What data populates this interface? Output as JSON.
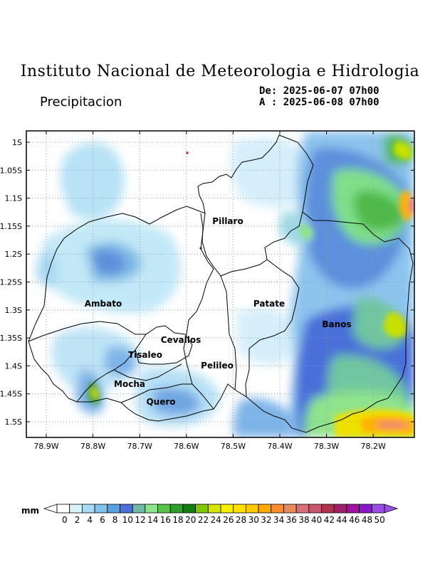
{
  "header": {
    "title": "Instituto Nacional de Meteorologia e Hidrologia",
    "subtitle": "Precipitacion",
    "date_from": "De: 2025-06-07 07h00",
    "date_to": "A : 2025-06-08 07h00"
  },
  "map": {
    "lat_ticks": [
      "1S",
      "1.05S",
      "1.1S",
      "1.15S",
      "1.2S",
      "1.25S",
      "1.3S",
      "1.35S",
      "1.4S",
      "1.45S",
      "1.5S"
    ],
    "lon_ticks": [
      "78.9W",
      "78.8W",
      "78.7W",
      "78.6W",
      "78.5W",
      "78.4W",
      "78.3W",
      "78.2W"
    ],
    "places": [
      {
        "name": "Pillaro"
      },
      {
        "name": "Ambato"
      },
      {
        "name": "Patate"
      },
      {
        "name": "Banos"
      },
      {
        "name": "Cevallos"
      },
      {
        "name": "Tisaleo"
      },
      {
        "name": "Pelileo"
      },
      {
        "name": "Mocha"
      },
      {
        "name": "Quero"
      }
    ]
  },
  "legend": {
    "unit": "mm",
    "labels": [
      "0",
      "2",
      "4",
      "6",
      "8",
      "10",
      "12",
      "14",
      "16",
      "18",
      "20",
      "22",
      "24",
      "26",
      "28",
      "30",
      "32",
      "34",
      "36",
      "38",
      "40",
      "42",
      "44",
      "46",
      "48",
      "50"
    ],
    "colors": [
      "#ffffff",
      "#d9f2fb",
      "#a9dcf3",
      "#7fc3ec",
      "#5a9ee3",
      "#4a70d8",
      "#6fb8a8",
      "#8fe38c",
      "#58c34a",
      "#2f9e2f",
      "#108010",
      "#82c800",
      "#d6e600",
      "#f4f000",
      "#ffe000",
      "#ffc800",
      "#ffa800",
      "#ff8c28",
      "#e88a5c",
      "#d8707a",
      "#c8566e",
      "#b03050",
      "#a0206a",
      "#a012a0",
      "#8818c8",
      "#9a4ce6"
    ]
  }
}
